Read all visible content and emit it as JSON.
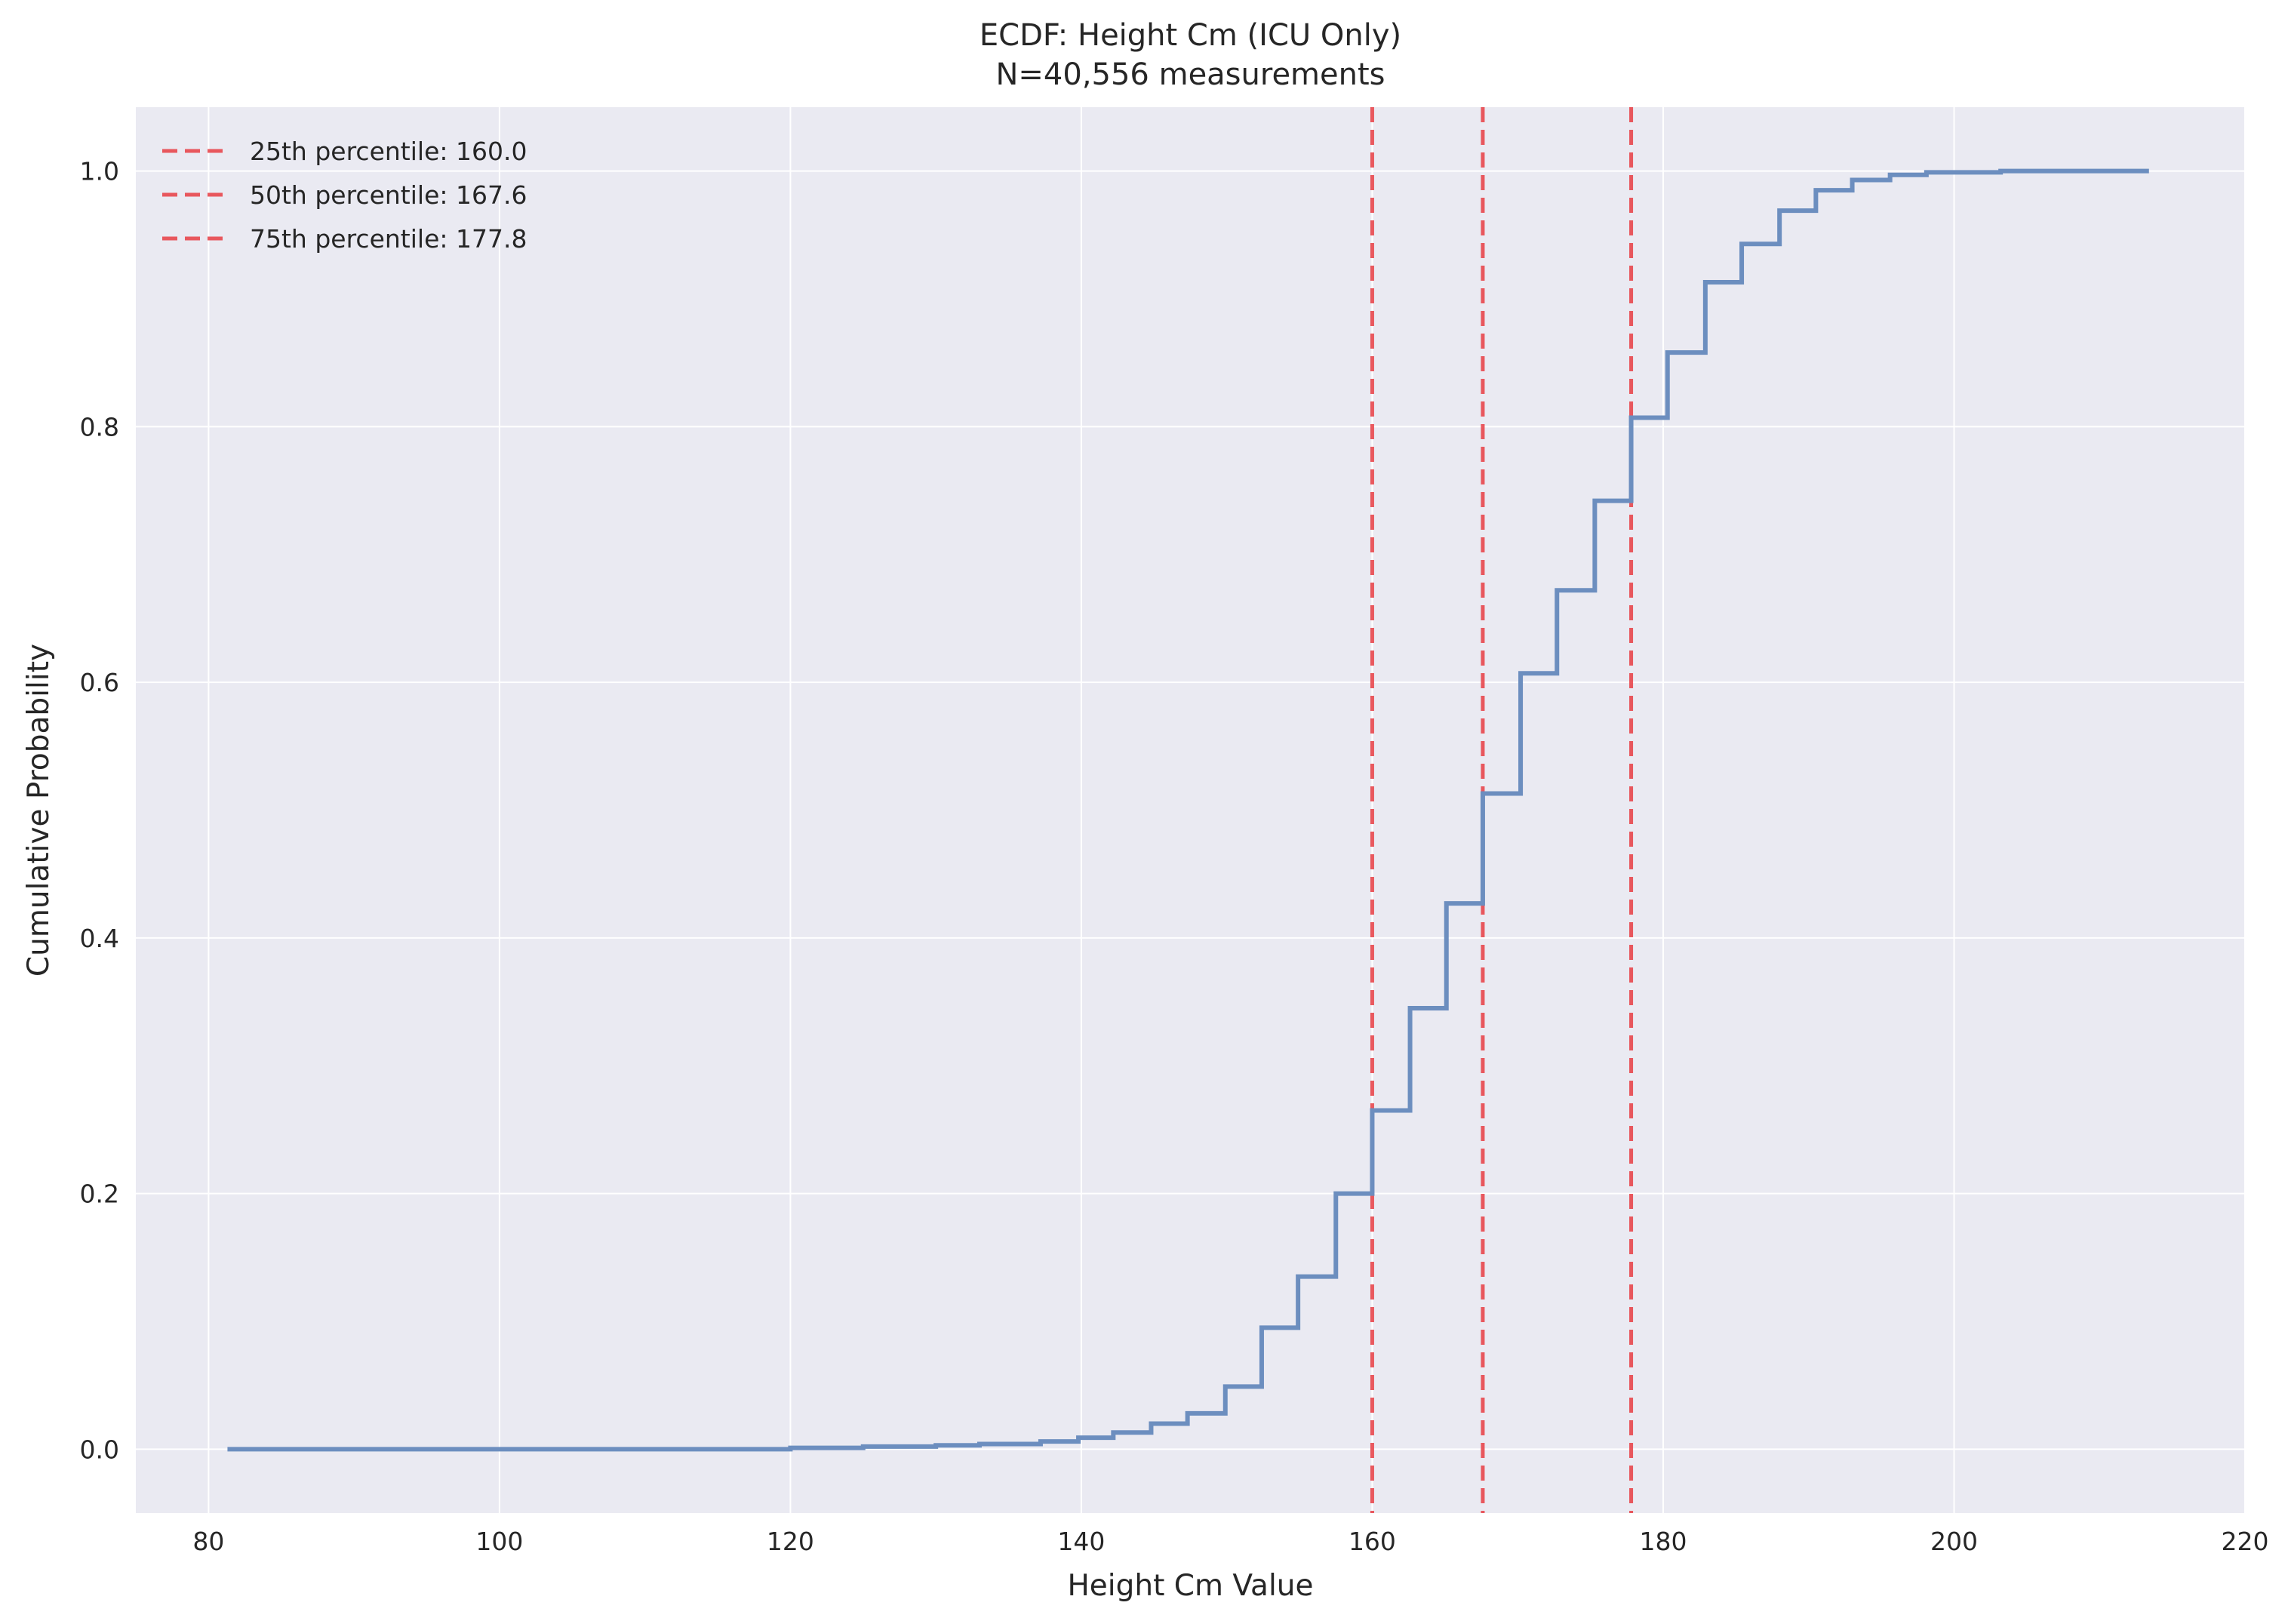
{
  "chart_data": {
    "type": "line",
    "title": "ECDF: Height Cm (ICU Only)",
    "subtitle": "N=40,556 measurements",
    "xlabel": "Height Cm Value",
    "ylabel": "Cumulative Probability",
    "xlim": [
      75,
      220
    ],
    "ylim": [
      -0.05,
      1.05
    ],
    "xticks": [
      80,
      100,
      120,
      140,
      160,
      180,
      200,
      220
    ],
    "yticks": [
      0.0,
      0.2,
      0.4,
      0.6,
      0.8,
      1.0
    ],
    "grid": true,
    "legend_position": "top-left",
    "colors": {
      "ecdf": "#6c8ebf",
      "percentile": "#e8474c",
      "background": "#eaeaf2",
      "grid": "#ffffff"
    },
    "series": [
      {
        "style": "step",
        "x": [
          81.3,
          110,
          120,
          125,
          130,
          133,
          137.2,
          139.8,
          142.2,
          144.8,
          147.3,
          149.9,
          152.4,
          154.9,
          157.5,
          160.0,
          162.6,
          165.1,
          167.6,
          170.2,
          172.7,
          175.3,
          177.8,
          180.3,
          182.9,
          185.4,
          188.0,
          190.5,
          193.0,
          195.6,
          198.1,
          203.2,
          213.4
        ],
        "y": [
          0.0,
          0.0,
          0.001,
          0.002,
          0.003,
          0.004,
          0.006,
          0.009,
          0.013,
          0.02,
          0.028,
          0.049,
          0.095,
          0.135,
          0.2,
          0.265,
          0.345,
          0.427,
          0.513,
          0.607,
          0.672,
          0.742,
          0.807,
          0.858,
          0.913,
          0.943,
          0.969,
          0.985,
          0.993,
          0.997,
          0.999,
          1.0,
          1.0
        ]
      }
    ],
    "percentile_lines": [
      {
        "label": "25th percentile: 160.0",
        "x": 160.0
      },
      {
        "label": "50th percentile: 167.6",
        "x": 167.6
      },
      {
        "label": "75th percentile: 177.8",
        "x": 177.8
      }
    ]
  }
}
